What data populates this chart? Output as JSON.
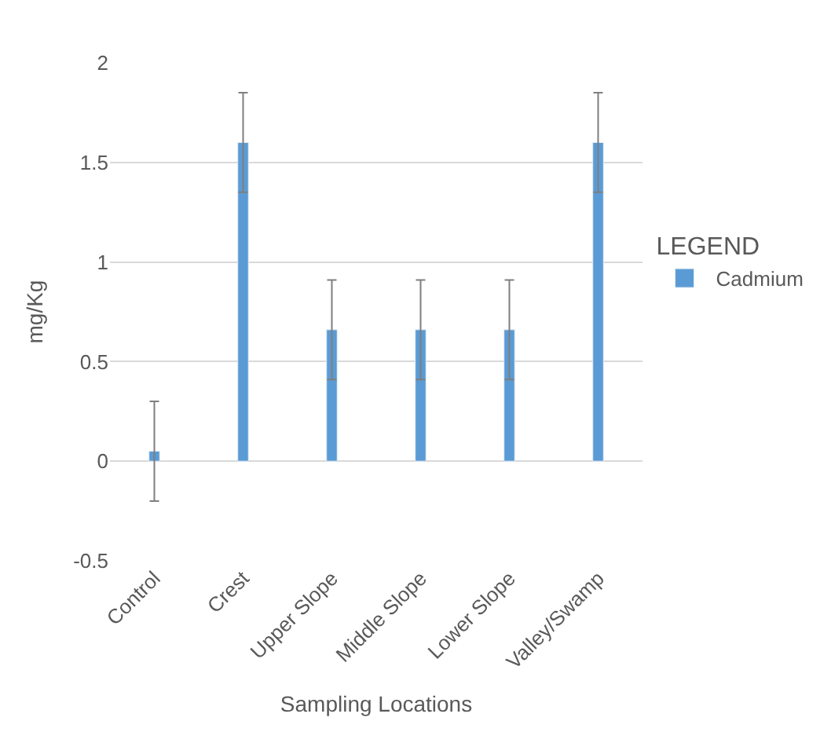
{
  "chart_data": {
    "type": "bar",
    "xlabel": "Sampling Locations",
    "ylabel": "mg/Kg",
    "legend_title": "LEGEND",
    "categories": [
      "Control",
      "Crest",
      "Upper Slope",
      "Middle Slope",
      "Lower Slope",
      "Valley/Swamp"
    ],
    "series": [
      {
        "name": "Cadmium",
        "color": "#5b9bd5",
        "values": [
          0.05,
          1.6,
          0.66,
          0.66,
          0.66,
          1.6
        ],
        "errors": [
          0.25,
          0.25,
          0.25,
          0.25,
          0.25,
          0.25
        ]
      }
    ],
    "ylim": [
      -0.5,
      2
    ],
    "yticks": [
      -0.5,
      0,
      0.5,
      1,
      1.5,
      2
    ],
    "grid": "y",
    "legend": "right"
  }
}
